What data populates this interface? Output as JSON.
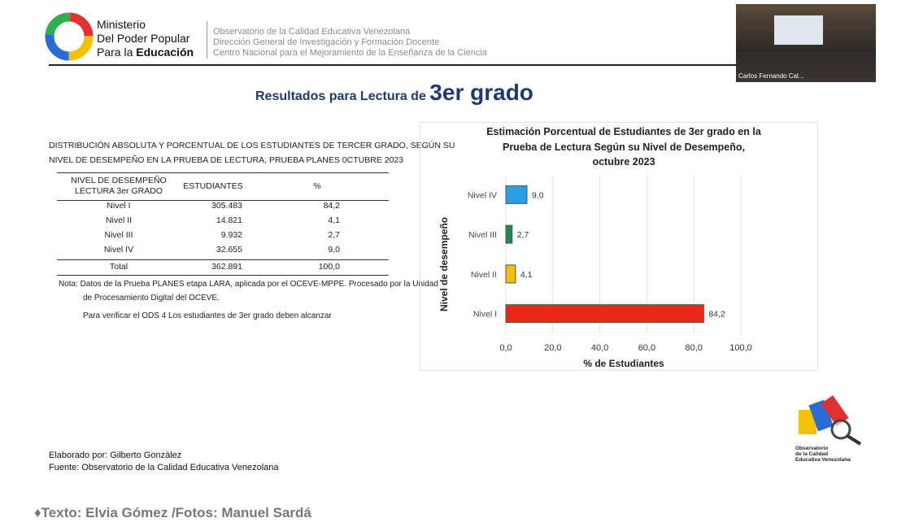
{
  "header": {
    "ministry_lines": [
      "Ministerio",
      "Del Poder Popular"
    ],
    "ministry_prefix": "Para la",
    "ministry_bold": "Educación",
    "org_lines": [
      "Observatorio de la Calidad Educativa Venezolana",
      "Dirección General de Investigación y Formación Docente",
      "Centro Nacional para el Mejoramiento de la Enseñanza de la Ciencia"
    ]
  },
  "video": {
    "participant": "Carlos Fernando Cal..."
  },
  "slide": {
    "title_prefix": "Resultados para Lectura de",
    "title_big": "3er grado"
  },
  "table": {
    "caption": [
      "DISTRIBUCIÓN ABSOLUTA Y PORCENTUAL DE LOS ESTUDIANTES DE TERCER GRADO, SEGÚN SU",
      "NIVEL DE DESEMPEÑO EN LA PRUEBA DE LECTURA, PRUEBA PLANES 0CTUBRE 2023"
    ],
    "header": [
      [
        "NIVEL DE DESEMPEÑO",
        "LECTURA 3er GRADO"
      ],
      "ESTUDIANTES",
      "%"
    ],
    "rows": [
      [
        "Nivel I",
        "305.483",
        "84,2"
      ],
      [
        "Nivel II",
        "14.821",
        "4,1"
      ],
      [
        "Nivel III",
        "9.932",
        "2,7"
      ],
      [
        "Nivel IV",
        "32.655",
        "9,0"
      ]
    ],
    "total": [
      "Total",
      "362.891",
      "100,0"
    ],
    "note": [
      "Nota: Datos de la Prueba PLANES etapa LARA, aplicada por el OCEVE-MPPE. Procesado por la Unidad",
      "de Procesamiento Digital del OCEVE."
    ],
    "verify": "Para verificar el ODS 4 Los estudiantes de 3er grado deben alcanzar"
  },
  "chart_data": {
    "type": "hbar",
    "title": [
      "Estimación Porcentual de Estudiantes de 3er grado en la",
      "Prueba de Lectura Según su Nivel de Desempeño,",
      "octubre 2023"
    ],
    "x_label": "% de Estudiantes",
    "y_label": "Nivel de desempeño",
    "categories": [
      "Nivel IV",
      "Nivel III",
      "Nivel II",
      "Nivel I"
    ],
    "values": [
      9.0,
      2.7,
      4.1,
      84.2
    ],
    "value_labels": [
      "9,0",
      "2,7",
      "4,1",
      "84,2"
    ],
    "colors": [
      "#2a9ee0",
      "#1f8a4c",
      "#f0c010",
      "#e8281a"
    ],
    "xlim": [
      0,
      100
    ],
    "xticks": [
      {
        "value": 0,
        "label": "0,0"
      },
      {
        "value": 20,
        "label": "20,0"
      },
      {
        "value": 40,
        "label": "40,0"
      },
      {
        "value": 60,
        "label": "60,0"
      },
      {
        "value": 80,
        "label": "80,0"
      },
      {
        "value": 100,
        "label": "100,0"
      }
    ],
    "grid": true
  },
  "credits": [
    "Elaborado por: Gilberto González",
    "Fuente: Observatorio de la Calidad Educativa Venezolana"
  ],
  "logo": [
    "Observatorio",
    "de la Calidad",
    "Educativa Venezolana"
  ],
  "footer": "♦Texto: Elvia Gómez /Fotos: Manuel Sardá"
}
